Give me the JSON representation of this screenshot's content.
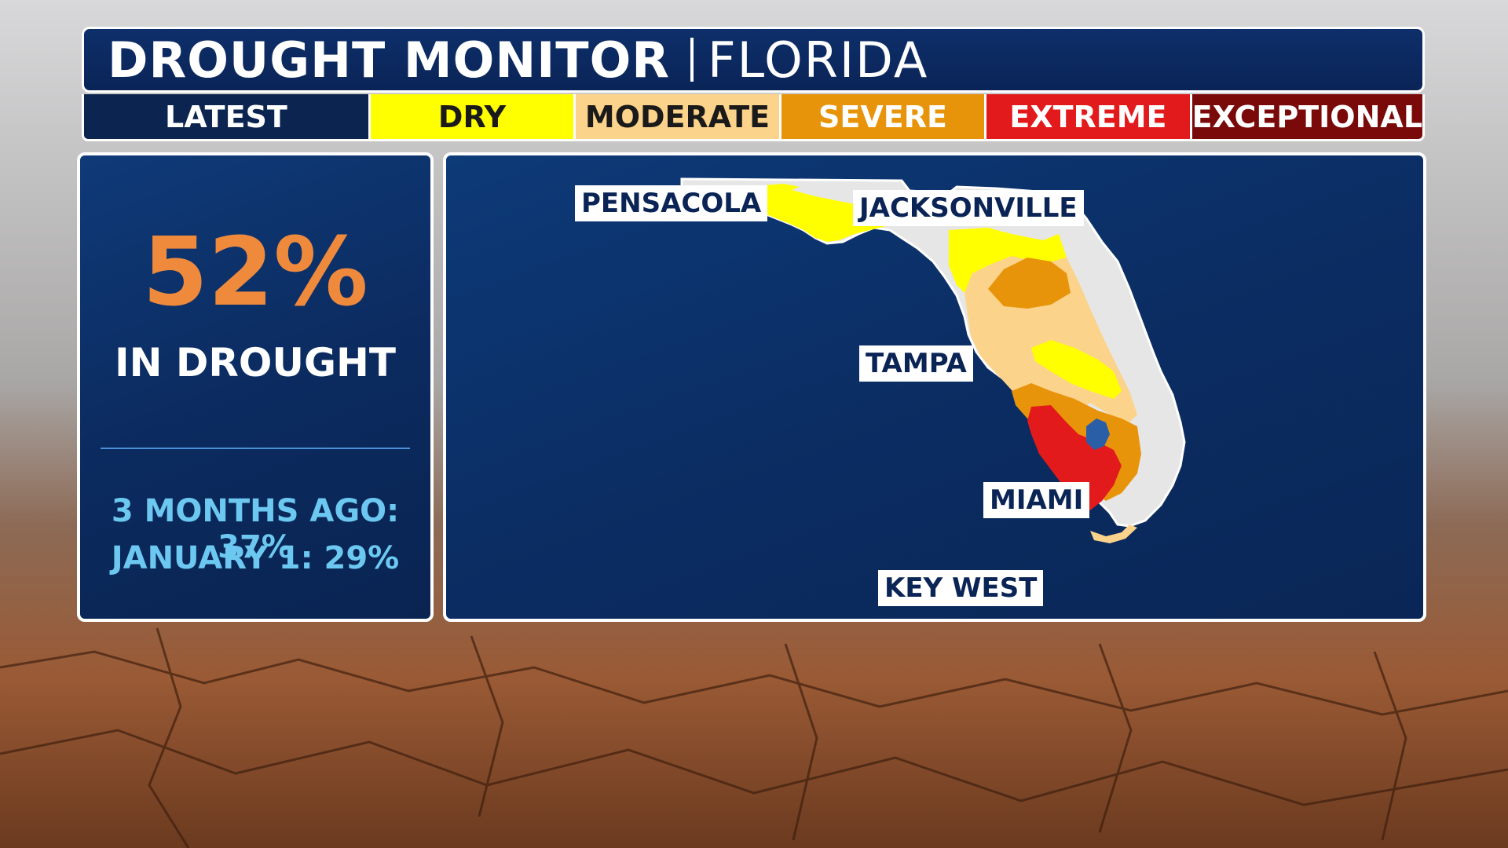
{
  "header": {
    "title": "DROUGHT MONITOR",
    "subtitle": "FLORIDA"
  },
  "legend": [
    {
      "label": "LATEST",
      "bg": "#0c2450",
      "color": "#ffffff",
      "flex": 1.4
    },
    {
      "label": "DRY",
      "bg": "#ffff00",
      "color": "#1a1a1a",
      "flex": 1
    },
    {
      "label": "MODERATE",
      "bg": "#fcd38a",
      "color": "#1a1a1a",
      "flex": 1
    },
    {
      "label": "SEVERE",
      "bg": "#e8940a",
      "color": "#ffffff",
      "flex": 1
    },
    {
      "label": "EXTREME",
      "bg": "#e31a1c",
      "color": "#ffffff",
      "flex": 1
    },
    {
      "label": "EXCEPTIONAL",
      "bg": "#7a0a0a",
      "color": "#ffffff",
      "flex": 1
    }
  ],
  "stats": {
    "percent": "52%",
    "label": "IN DROUGHT",
    "three_months_ago": "3 MONTHS AGO: 37%",
    "january_1": "JANUARY 1: 29%"
  },
  "map": {
    "cities": [
      {
        "name": "PENSACOLA"
      },
      {
        "name": "JACKSONVILLE"
      },
      {
        "name": "TAMPA"
      },
      {
        "name": "MIAMI"
      },
      {
        "name": "KEY WEST"
      }
    ],
    "colors": {
      "none": "#e6e6e6",
      "dry": "#ffff00",
      "moderate": "#fcd38a",
      "severe": "#e8940a",
      "extreme": "#e31a1c",
      "water": "#2a5fa8"
    }
  }
}
